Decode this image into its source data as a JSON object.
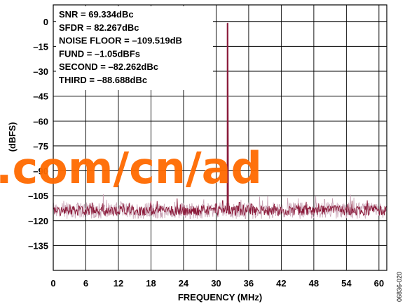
{
  "chart_data": {
    "type": "line",
    "xlabel": "FREQUENCY (MHz)",
    "ylabel": "(dBFS)",
    "xlim": [
      0,
      61.44
    ],
    "ylim": [
      -150,
      10
    ],
    "x_ticks": [
      "0",
      "6",
      "12",
      "18",
      "24",
      "30",
      "36",
      "42",
      "48",
      "54",
      "60"
    ],
    "x_tick_values": [
      0,
      6,
      12,
      18,
      24,
      30,
      36,
      42,
      48,
      54,
      60
    ],
    "y_ticks": [
      "0",
      "–15",
      "–30",
      "–45",
      "–60",
      "–75",
      "–90",
      "–105",
      "–120",
      "–135"
    ],
    "y_tick_values": [
      0,
      -15,
      -30,
      -45,
      -60,
      -75,
      -90,
      -105,
      -120,
      -135
    ],
    "grid": true,
    "series_color": "#8b1a3a",
    "series": [
      {
        "noise_floor_dbfs": -114,
        "noise_spread_db": 3,
        "fundamental": {
          "x": 32.1,
          "y": -1.05
        },
        "spurs": [
          {
            "x": 30.0,
            "y": -110
          },
          {
            "x": 31.2,
            "y": -108
          },
          {
            "x": 34.3,
            "y": -109
          },
          {
            "x": 36.5,
            "y": -110
          }
        ]
      }
    ],
    "annotations": [
      "SNR = 69.334dBc",
      "SFDR = 82.267dBc",
      "NOISE FLOOR = –109.519dB",
      "FUND = –1.05dBFs",
      "SECOND = –82.262dBc",
      "THIRD = –88.688dBc"
    ]
  },
  "figure_code": "06836-020",
  "watermark": ".com/cn/ad"
}
